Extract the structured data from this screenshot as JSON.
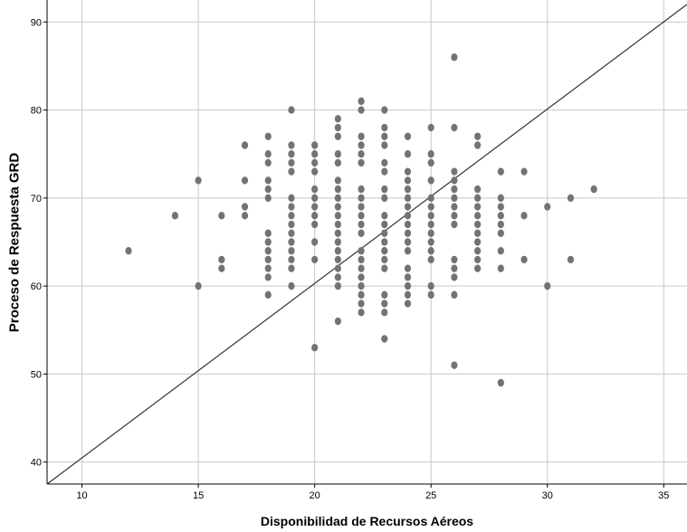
{
  "chart_data": {
    "type": "scatter",
    "title": "",
    "xlabel": "Disponibilidad de Recursos Aéreos",
    "ylabel": "Proceso de Respuesta GRD",
    "xlim": [
      8.5,
      36
    ],
    "ylim": [
      37.5,
      92.5
    ],
    "xticks": [
      10,
      15,
      20,
      25,
      30,
      35
    ],
    "yticks": [
      40,
      50,
      60,
      70,
      80,
      90
    ],
    "grid": true,
    "reference_line": {
      "type": "identity",
      "from": [
        8.5,
        37.5
      ],
      "to": [
        36,
        92
      ]
    },
    "colors": {
      "points": "#737373",
      "line": "#333333",
      "grid": "#c8c8c8"
    },
    "series": [
      {
        "points": [
          [
            12,
            64
          ],
          [
            14,
            68
          ],
          [
            15,
            72
          ],
          [
            15,
            60
          ],
          [
            16,
            68
          ],
          [
            16,
            63
          ],
          [
            16,
            62
          ],
          [
            17,
            76
          ],
          [
            17,
            72
          ],
          [
            17,
            69
          ],
          [
            17,
            68
          ],
          [
            18,
            77
          ],
          [
            18,
            75
          ],
          [
            18,
            74
          ],
          [
            18,
            72
          ],
          [
            18,
            71
          ],
          [
            18,
            70
          ],
          [
            18,
            66
          ],
          [
            18,
            65
          ],
          [
            18,
            64
          ],
          [
            18,
            63
          ],
          [
            18,
            62
          ],
          [
            18,
            61
          ],
          [
            18,
            59
          ],
          [
            19,
            80
          ],
          [
            19,
            76
          ],
          [
            19,
            75
          ],
          [
            19,
            74
          ],
          [
            19,
            73
          ],
          [
            19,
            70
          ],
          [
            19,
            69
          ],
          [
            19,
            68
          ],
          [
            19,
            67
          ],
          [
            19,
            66
          ],
          [
            19,
            65
          ],
          [
            19,
            64
          ],
          [
            19,
            63
          ],
          [
            19,
            62
          ],
          [
            19,
            60
          ],
          [
            20,
            76
          ],
          [
            20,
            75
          ],
          [
            20,
            74
          ],
          [
            20,
            73
          ],
          [
            20,
            71
          ],
          [
            20,
            70
          ],
          [
            20,
            69
          ],
          [
            20,
            68
          ],
          [
            20,
            67
          ],
          [
            20,
            65
          ],
          [
            20,
            63
          ],
          [
            20,
            53
          ],
          [
            21,
            79
          ],
          [
            21,
            78
          ],
          [
            21,
            77
          ],
          [
            21,
            75
          ],
          [
            21,
            74
          ],
          [
            21,
            72
          ],
          [
            21,
            71
          ],
          [
            21,
            70
          ],
          [
            21,
            69
          ],
          [
            21,
            68
          ],
          [
            21,
            67
          ],
          [
            21,
            66
          ],
          [
            21,
            65
          ],
          [
            21,
            64
          ],
          [
            21,
            63
          ],
          [
            21,
            62
          ],
          [
            21,
            61
          ],
          [
            21,
            60
          ],
          [
            21,
            56
          ],
          [
            22,
            81
          ],
          [
            22,
            80
          ],
          [
            22,
            77
          ],
          [
            22,
            76
          ],
          [
            22,
            75
          ],
          [
            22,
            74
          ],
          [
            22,
            71
          ],
          [
            22,
            70
          ],
          [
            22,
            69
          ],
          [
            22,
            68
          ],
          [
            22,
            67
          ],
          [
            22,
            66
          ],
          [
            22,
            64
          ],
          [
            22,
            63
          ],
          [
            22,
            62
          ],
          [
            22,
            61
          ],
          [
            22,
            60
          ],
          [
            22,
            59
          ],
          [
            22,
            58
          ],
          [
            22,
            57
          ],
          [
            23,
            80
          ],
          [
            23,
            78
          ],
          [
            23,
            77
          ],
          [
            23,
            76
          ],
          [
            23,
            74
          ],
          [
            23,
            73
          ],
          [
            23,
            71
          ],
          [
            23,
            70
          ],
          [
            23,
            68
          ],
          [
            23,
            67
          ],
          [
            23,
            66
          ],
          [
            23,
            65
          ],
          [
            23,
            64
          ],
          [
            23,
            63
          ],
          [
            23,
            62
          ],
          [
            23,
            59
          ],
          [
            23,
            58
          ],
          [
            23,
            57
          ],
          [
            23,
            54
          ],
          [
            24,
            77
          ],
          [
            24,
            75
          ],
          [
            24,
            73
          ],
          [
            24,
            72
          ],
          [
            24,
            71
          ],
          [
            24,
            70
          ],
          [
            24,
            69
          ],
          [
            24,
            68
          ],
          [
            24,
            67
          ],
          [
            24,
            66
          ],
          [
            24,
            65
          ],
          [
            24,
            64
          ],
          [
            24,
            62
          ],
          [
            24,
            61
          ],
          [
            24,
            60
          ],
          [
            24,
            59
          ],
          [
            24,
            58
          ],
          [
            25,
            78
          ],
          [
            25,
            75
          ],
          [
            25,
            74
          ],
          [
            25,
            72
          ],
          [
            25,
            70
          ],
          [
            25,
            69
          ],
          [
            25,
            68
          ],
          [
            25,
            67
          ],
          [
            25,
            66
          ],
          [
            25,
            65
          ],
          [
            25,
            64
          ],
          [
            25,
            63
          ],
          [
            25,
            60
          ],
          [
            25,
            59
          ],
          [
            26,
            86
          ],
          [
            26,
            78
          ],
          [
            26,
            73
          ],
          [
            26,
            72
          ],
          [
            26,
            71
          ],
          [
            26,
            70
          ],
          [
            26,
            69
          ],
          [
            26,
            68
          ],
          [
            26,
            67
          ],
          [
            26,
            63
          ],
          [
            26,
            62
          ],
          [
            26,
            61
          ],
          [
            26,
            59
          ],
          [
            26,
            51
          ],
          [
            27,
            77
          ],
          [
            27,
            76
          ],
          [
            27,
            71
          ],
          [
            27,
            70
          ],
          [
            27,
            69
          ],
          [
            27,
            68
          ],
          [
            27,
            67
          ],
          [
            27,
            66
          ],
          [
            27,
            65
          ],
          [
            27,
            64
          ],
          [
            27,
            63
          ],
          [
            27,
            62
          ],
          [
            28,
            73
          ],
          [
            28,
            70
          ],
          [
            28,
            69
          ],
          [
            28,
            68
          ],
          [
            28,
            67
          ],
          [
            28,
            66
          ],
          [
            28,
            64
          ],
          [
            28,
            62
          ],
          [
            28,
            49
          ],
          [
            29,
            73
          ],
          [
            29,
            68
          ],
          [
            29,
            63
          ],
          [
            30,
            69
          ],
          [
            30,
            60
          ],
          [
            31,
            70
          ],
          [
            31,
            63
          ],
          [
            32,
            71
          ]
        ]
      }
    ]
  }
}
